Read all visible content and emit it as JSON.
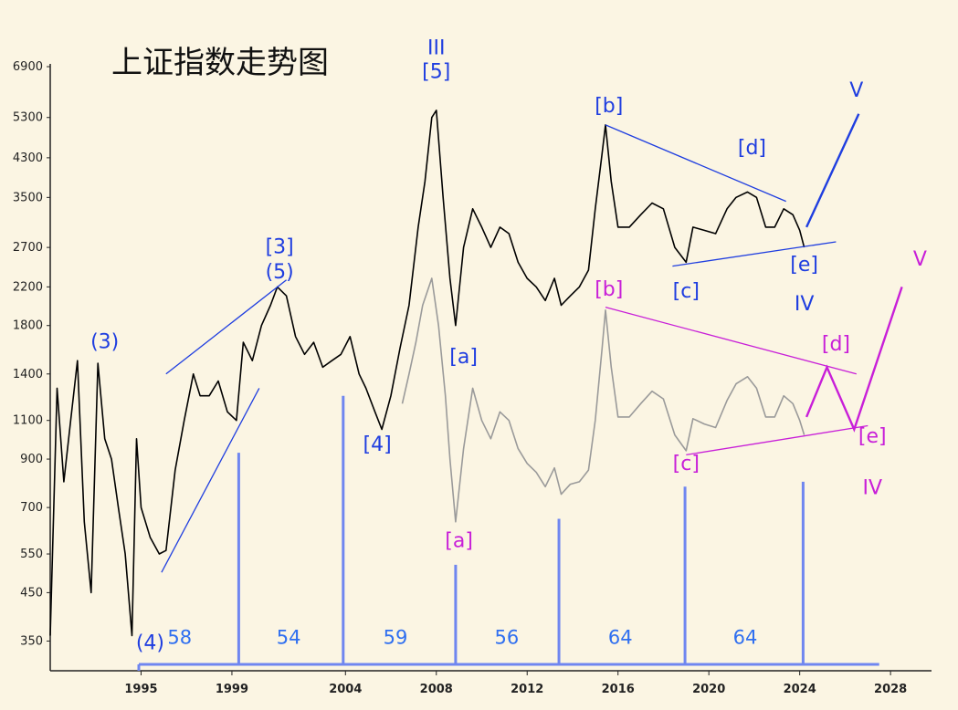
{
  "chart_data": {
    "type": "line",
    "title": "上证指数走势图",
    "y_scale": "log",
    "ylim": [
      300,
      7000
    ],
    "xlim": [
      1991.0,
      2029.0
    ],
    "y_ticks": [
      "6900",
      "5300",
      "4300",
      "3500",
      "2700",
      "2200",
      "1800",
      "1400",
      "1100",
      "900",
      "700",
      "550",
      "450",
      "350"
    ],
    "x_ticks": [
      "1995",
      "1999",
      "2004",
      "2008",
      "2012",
      "2016",
      "2020",
      "2024",
      "2028"
    ],
    "colors": {
      "background": "#fbf5e3",
      "price_line": "#000000",
      "ghost_line": "#9a9a9a",
      "primary_labels": "#1f3ee0",
      "alt_labels": "#c81fd8",
      "cycle_markers": "#6f86f0",
      "cycle_numbers": "#2f6ff0"
    },
    "series": [
      {
        "role": "main",
        "x": [
          1991.0,
          1991.3,
          1991.6,
          1991.9,
          1992.2,
          1992.5,
          1992.8,
          1993.1,
          1993.4,
          1993.7,
          1994.0,
          1994.3,
          1994.6,
          1994.8,
          1995.0,
          1995.4,
          1995.8,
          1996.1,
          1996.5,
          1996.9,
          1997.3,
          1997.6,
          1998.0,
          1998.4,
          1998.8,
          1999.2,
          1999.5,
          1999.9,
          2000.3,
          2000.7,
          2001.0,
          2001.4,
          2001.8,
          2002.2,
          2002.6,
          2003.0,
          2003.4,
          2003.8,
          2004.2,
          2004.6,
          2004.9,
          2005.3,
          2005.6,
          2006.0,
          2006.4,
          2006.8,
          2007.2,
          2007.5,
          2007.8,
          2008.0,
          2008.3,
          2008.6,
          2008.85,
          2009.2,
          2009.6,
          2010.0,
          2010.4,
          2010.8,
          2011.2,
          2011.6,
          2012.0,
          2012.4,
          2012.8,
          2013.2,
          2013.5,
          2013.9,
          2014.3,
          2014.7,
          2015.0,
          2015.3,
          2015.45,
          2015.7,
          2016.0,
          2016.5,
          2017.0,
          2017.5,
          2018.0,
          2018.5,
          2019.0,
          2019.3,
          2019.8,
          2020.3,
          2020.8,
          2021.2,
          2021.7,
          2022.1,
          2022.5,
          2022.9,
          2023.3,
          2023.7,
          2024.0,
          2024.2
        ],
        "y": [
          360,
          1300,
          800,
          1100,
          1500,
          650,
          450,
          1480,
          1000,
          900,
          700,
          550,
          360,
          1000,
          700,
          600,
          550,
          560,
          850,
          1100,
          1400,
          1250,
          1250,
          1350,
          1150,
          1100,
          1650,
          1500,
          1800,
          2000,
          2200,
          2100,
          1700,
          1550,
          1650,
          1450,
          1500,
          1550,
          1700,
          1400,
          1300,
          1150,
          1050,
          1250,
          1600,
          2000,
          3000,
          3800,
          5300,
          5500,
          3500,
          2300,
          1800,
          2700,
          3300,
          3000,
          2700,
          3000,
          2900,
          2500,
          2300,
          2200,
          2050,
          2300,
          2000,
          2100,
          2200,
          2400,
          3300,
          4400,
          5100,
          3800,
          3000,
          3000,
          3200,
          3400,
          3300,
          2700,
          2500,
          3000,
          2950,
          2900,
          3300,
          3500,
          3600,
          3500,
          3000,
          3000,
          3300,
          3200,
          2950,
          2700
        ]
      },
      {
        "role": "ghost",
        "x": [
          2006.5,
          2006.8,
          2007.1,
          2007.4,
          2007.8,
          2008.1,
          2008.4,
          2008.6,
          2008.85,
          2009.2,
          2009.6,
          2010.0,
          2010.4,
          2010.8,
          2011.2,
          2011.6,
          2012.0,
          2012.4,
          2012.8,
          2013.2,
          2013.5,
          2013.9,
          2014.3,
          2014.7,
          2015.0,
          2015.3,
          2015.45,
          2015.7,
          2016.0,
          2016.5,
          2017.0,
          2017.5,
          2018.0,
          2018.5,
          2019.0,
          2019.3,
          2019.8,
          2020.3,
          2020.8,
          2021.2,
          2021.7,
          2022.1,
          2022.5,
          2022.9,
          2023.3,
          2023.7,
          2024.0,
          2024.2
        ],
        "y": [
          1200,
          1400,
          1650,
          2000,
          2300,
          1800,
          1250,
          900,
          650,
          950,
          1300,
          1100,
          1000,
          1150,
          1100,
          950,
          880,
          840,
          780,
          860,
          750,
          790,
          800,
          850,
          1100,
          1600,
          1950,
          1450,
          1120,
          1120,
          1200,
          1280,
          1230,
          1020,
          940,
          1110,
          1080,
          1060,
          1220,
          1330,
          1380,
          1300,
          1120,
          1120,
          1250,
          1200,
          1100,
          1020
        ]
      }
    ],
    "cycle_markers": {
      "x": [
        1994.9,
        1999.3,
        2003.9,
        2008.85,
        2013.4,
        2018.95,
        2024.15
      ],
      "y": [
        300,
        930,
        1250,
        520,
        660,
        780,
        800
      ]
    },
    "cycle_intervals": [
      "58",
      "54",
      "59",
      "56",
      "64",
      "64"
    ],
    "cycle_interval_x": [
      1996.7,
      2001.5,
      2006.2,
      2011.1,
      2016.1,
      2021.6
    ],
    "cycle_interval_y": 345,
    "primary_wave_labels": [
      {
        "text": "(3)",
        "x": 1993.4,
        "y": 1600
      },
      {
        "text": "(4)",
        "x": 1995.4,
        "y": 335
      },
      {
        "text": "[3]",
        "x": 2001.1,
        "y": 2620
      },
      {
        "text": "(5)",
        "x": 2001.1,
        "y": 2300
      },
      {
        "text": "[4]",
        "x": 2005.4,
        "y": 940
      },
      {
        "text": "III",
        "x": 2008.0,
        "y": 7350
      },
      {
        "text": "[5]",
        "x": 2008.0,
        "y": 6500
      },
      {
        "text": "[a]",
        "x": 2009.2,
        "y": 1480
      },
      {
        "text": "[b]",
        "x": 2015.6,
        "y": 5450
      },
      {
        "text": "[c]",
        "x": 2019.0,
        "y": 2080
      },
      {
        "text": "[d]",
        "x": 2021.9,
        "y": 4380
      },
      {
        "text": "[e]",
        "x": 2024.2,
        "y": 2390
      },
      {
        "text": "IV",
        "x": 2024.2,
        "y": 1950
      },
      {
        "text": "V",
        "x": 2026.5,
        "y": 5900
      }
    ],
    "alt_wave_labels": [
      {
        "text": "[a]",
        "x": 2009.0,
        "y": 570
      },
      {
        "text": "[b]",
        "x": 2015.6,
        "y": 2100
      },
      {
        "text": "[c]",
        "x": 2019.0,
        "y": 850
      },
      {
        "text": "[d]",
        "x": 2025.6,
        "y": 1580
      },
      {
        "text": "[e]",
        "x": 2027.2,
        "y": 980
      },
      {
        "text": "IV",
        "x": 2027.2,
        "y": 750
      },
      {
        "text": "V",
        "x": 2029.3,
        "y": 2460
      }
    ],
    "trendlines": [
      {
        "color": "#1f3ee0",
        "x": [
          1996.1,
          2001.4
        ],
        "y": [
          1400,
          2280
        ]
      },
      {
        "color": "#1f3ee0",
        "x": [
          1995.9,
          2000.2
        ],
        "y": [
          500,
          1300
        ]
      },
      {
        "color": "#1f3ee0",
        "x": [
          2015.45,
          2023.4
        ],
        "y": [
          5100,
          3430
        ]
      },
      {
        "color": "#1f3ee0",
        "x": [
          2018.4,
          2025.6
        ],
        "y": [
          2450,
          2780
        ]
      },
      {
        "color": "#1f3ee0",
        "x": [
          2024.3,
          2026.6
        ],
        "y": [
          3000,
          5400
        ]
      },
      {
        "color": "#c81fd8",
        "x": [
          2015.45,
          2026.5
        ],
        "y": [
          1980,
          1400
        ]
      },
      {
        "color": "#c81fd8",
        "x": [
          2019.0,
          2027.0
        ],
        "y": [
          920,
          1070
        ]
      },
      {
        "color": "#c81fd8",
        "x": [
          2024.3,
          2025.2,
          2026.4,
          2028.5
        ],
        "y": [
          1120,
          1450,
          1050,
          2200
        ]
      }
    ]
  }
}
